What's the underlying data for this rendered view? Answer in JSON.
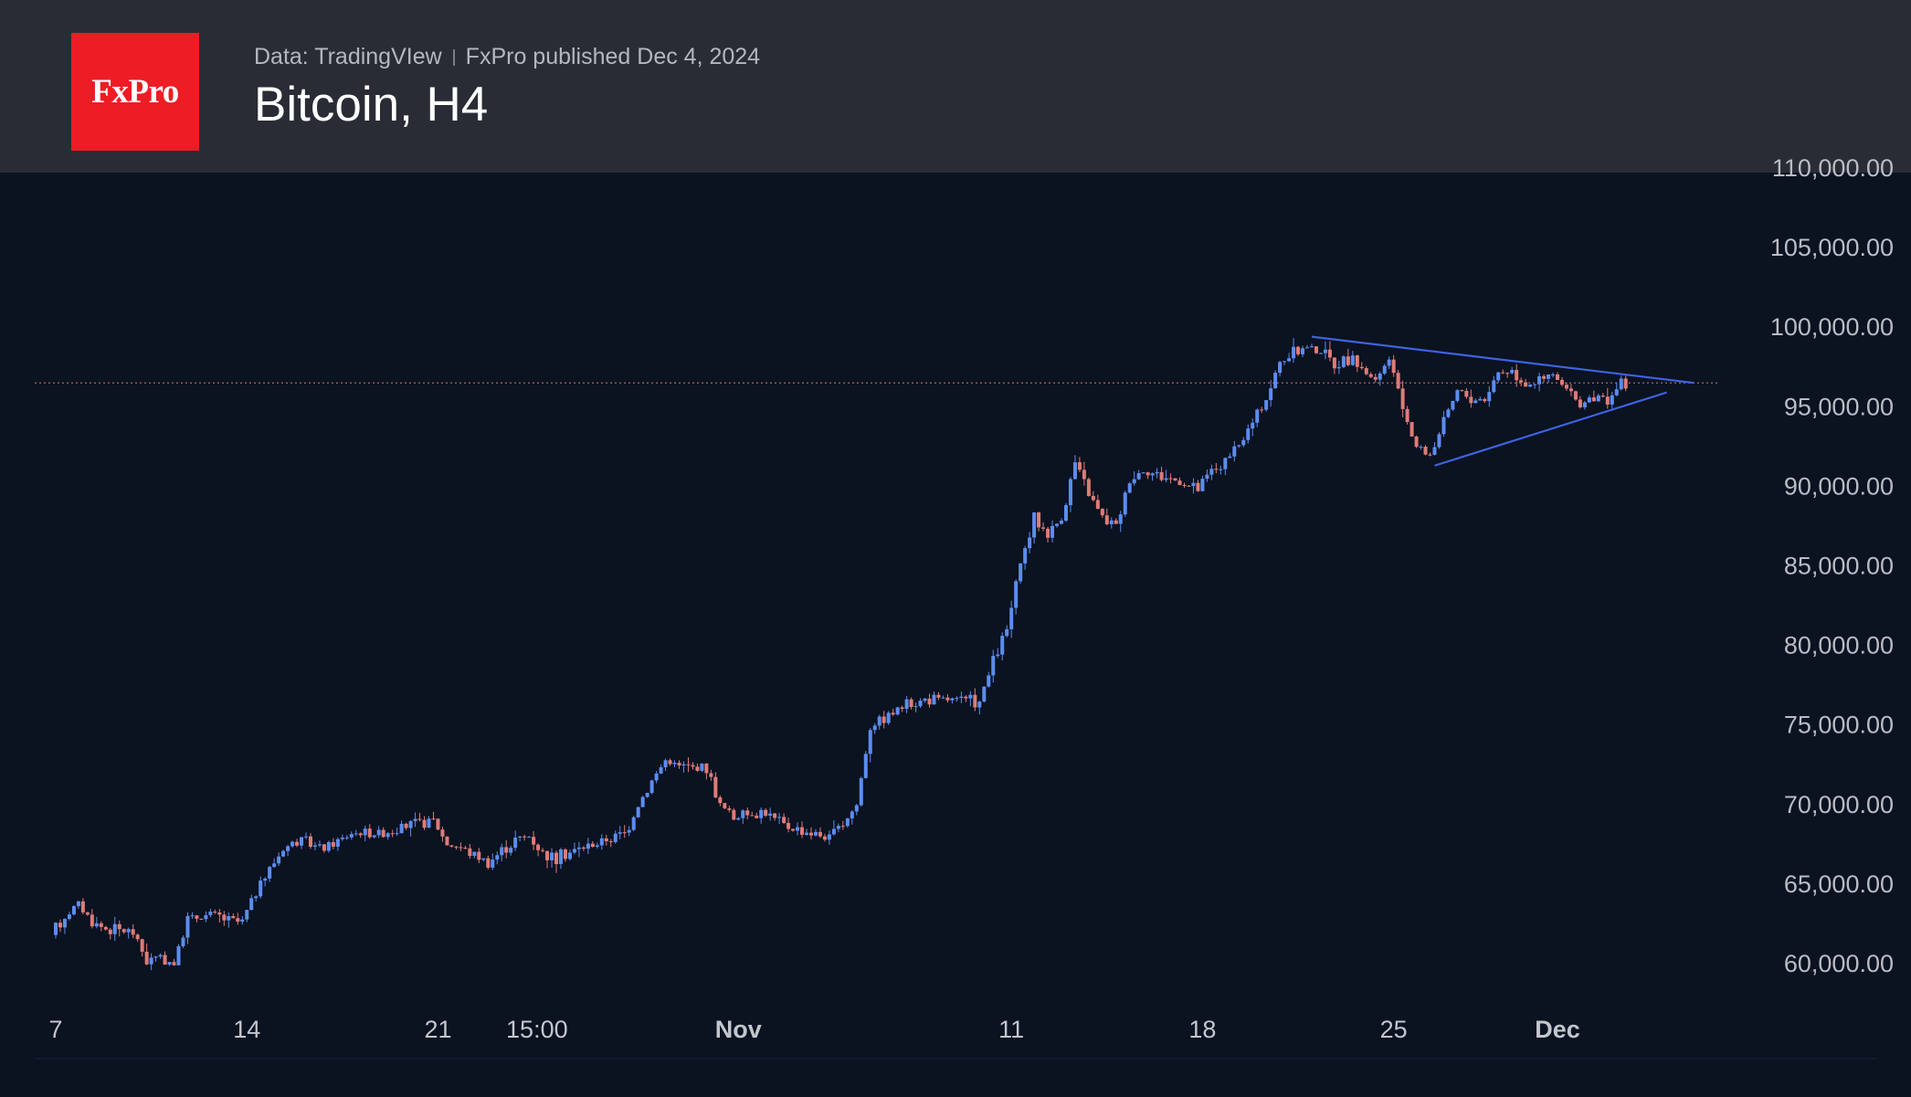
{
  "header": {
    "logo_text": "FxPro",
    "source": "Data: TradingVIew",
    "published": "FxPro published Dec 4, 2024",
    "title": "Bitcoin, H4"
  },
  "colors": {
    "background": "#0b1220",
    "header": "#2a2c35",
    "logo": "#ee1c24",
    "up": "#5b8def",
    "down": "#e07b76",
    "trendline": "#3d63e0",
    "price_line": "#b4727a"
  },
  "chart_data": {
    "type": "candlestick",
    "title": "Bitcoin, H4",
    "ylim": [
      57500,
      110000
    ],
    "y_ticks": [
      60000,
      65000,
      70000,
      75000,
      80000,
      85000,
      90000,
      95000,
      100000,
      105000,
      110000
    ],
    "y_tick_labels": [
      "60,000.00",
      "65,000.00",
      "70,000.00",
      "75,000.00",
      "80,000.00",
      "85,000.00",
      "90,000.00",
      "95,000.00",
      "100,000.00",
      "105,000.00",
      "110,000.00"
    ],
    "x_ticks": [
      {
        "label": "7",
        "date": "2024-10-07",
        "bold": false
      },
      {
        "label": "14",
        "date": "2024-10-14",
        "bold": false
      },
      {
        "label": "21",
        "date": "2024-10-21",
        "bold": false
      },
      {
        "label": "15:00",
        "date": "2024-10-24 15:00",
        "bold": false
      },
      {
        "label": "Nov",
        "date": "2024-11-01",
        "bold": true
      },
      {
        "label": "11",
        "date": "2024-11-11",
        "bold": false
      },
      {
        "label": "18",
        "date": "2024-11-18",
        "bold": false
      },
      {
        "label": "25",
        "date": "2024-11-25",
        "bold": false
      },
      {
        "label": "Dec",
        "date": "2024-12-01",
        "bold": true
      }
    ],
    "price_path": [
      [
        "2024-10-07",
        61800
      ],
      [
        "2024-10-07 12:00",
        63000
      ],
      [
        "2024-10-08",
        63800
      ],
      [
        "2024-10-08 12:00",
        62600
      ],
      [
        "2024-10-09",
        62200
      ],
      [
        "2024-10-10",
        62000
      ],
      [
        "2024-10-10 12:00",
        60200
      ],
      [
        "2024-10-11",
        60400
      ],
      [
        "2024-10-11 12:00",
        60000
      ],
      [
        "2024-10-12",
        62800
      ],
      [
        "2024-10-13",
        63100
      ],
      [
        "2024-10-13 12:00",
        62700
      ],
      [
        "2024-10-14",
        62600
      ],
      [
        "2024-10-14 12:00",
        64500
      ],
      [
        "2024-10-15",
        66000
      ],
      [
        "2024-10-15 12:00",
        67200
      ],
      [
        "2024-10-16",
        67800
      ],
      [
        "2024-10-17",
        67200
      ],
      [
        "2024-10-18",
        68200
      ],
      [
        "2024-10-19",
        68200
      ],
      [
        "2024-10-20",
        68600
      ],
      [
        "2024-10-21",
        69000
      ],
      [
        "2024-10-21 12:00",
        67500
      ],
      [
        "2024-10-22",
        67300
      ],
      [
        "2024-10-23",
        66400
      ],
      [
        "2024-10-24",
        67800
      ],
      [
        "2024-10-24 12:00",
        68000
      ],
      [
        "2024-10-25",
        67000
      ],
      [
        "2024-10-25 12:00",
        66600
      ],
      [
        "2024-10-26",
        67000
      ],
      [
        "2024-10-27",
        67600
      ],
      [
        "2024-10-28",
        68200
      ],
      [
        "2024-10-28 12:00",
        70000
      ],
      [
        "2024-10-29",
        71500
      ],
      [
        "2024-10-29 12:00",
        72800
      ],
      [
        "2024-10-30",
        72400
      ],
      [
        "2024-10-31",
        72300
      ],
      [
        "2024-10-31 12:00",
        70000
      ],
      [
        "2024-11-01",
        69200
      ],
      [
        "2024-11-02",
        69600
      ],
      [
        "2024-11-03",
        68600
      ],
      [
        "2024-11-04",
        68200
      ],
      [
        "2024-11-04 12:00",
        67900
      ],
      [
        "2024-11-05",
        68800
      ],
      [
        "2024-11-05 12:00",
        70000
      ],
      [
        "2024-11-06",
        75000
      ],
      [
        "2024-11-06 12:00",
        75500
      ],
      [
        "2024-11-07",
        76000
      ],
      [
        "2024-11-08",
        76600
      ],
      [
        "2024-11-09",
        76600
      ],
      [
        "2024-11-10",
        76400
      ],
      [
        "2024-11-10 12:00",
        79000
      ],
      [
        "2024-11-11",
        81000
      ],
      [
        "2024-11-11 12:00",
        85000
      ],
      [
        "2024-11-12",
        88000
      ],
      [
        "2024-11-12 12:00",
        87000
      ],
      [
        "2024-11-13",
        88000
      ],
      [
        "2024-11-13 12:00",
        91500
      ],
      [
        "2024-11-14",
        89500
      ],
      [
        "2024-11-14 12:00",
        88000
      ],
      [
        "2024-11-15",
        87500
      ],
      [
        "2024-11-15 12:00",
        90500
      ],
      [
        "2024-11-16",
        91000
      ],
      [
        "2024-11-17",
        90500
      ],
      [
        "2024-11-18",
        89800
      ],
      [
        "2024-11-18 12:00",
        91000
      ],
      [
        "2024-11-19",
        91500
      ],
      [
        "2024-11-19 12:00",
        92500
      ],
      [
        "2024-11-20",
        94000
      ],
      [
        "2024-11-20 12:00",
        95500
      ],
      [
        "2024-11-21",
        97800
      ],
      [
        "2024-11-21 12:00",
        98300
      ],
      [
        "2024-11-22",
        98800
      ],
      [
        "2024-11-22 12:00",
        98500
      ],
      [
        "2024-11-23",
        97700
      ],
      [
        "2024-11-23 12:00",
        98000
      ],
      [
        "2024-11-24",
        97500
      ],
      [
        "2024-11-24 12:00",
        96500
      ],
      [
        "2024-11-25",
        98000
      ],
      [
        "2024-11-25 12:00",
        95000
      ],
      [
        "2024-11-26",
        92500
      ],
      [
        "2024-11-26 12:00",
        92000
      ],
      [
        "2024-11-27",
        94000
      ],
      [
        "2024-11-27 12:00",
        96000
      ],
      [
        "2024-11-28",
        95500
      ],
      [
        "2024-11-28 12:00",
        95500
      ],
      [
        "2024-11-29",
        97200
      ],
      [
        "2024-11-29 12:00",
        97300
      ],
      [
        "2024-11-30",
        96500
      ],
      [
        "2024-11-30 12:00",
        96600
      ],
      [
        "2024-12-01",
        97000
      ],
      [
        "2024-12-01 12:00",
        96000
      ],
      [
        "2024-12-02",
        95200
      ],
      [
        "2024-12-02 12:00",
        95500
      ],
      [
        "2024-12-03",
        95600
      ],
      [
        "2024-12-03 12:00",
        96400
      ]
    ],
    "last_price": 96500,
    "trendlines": [
      {
        "from": [
          "2024-11-22",
          99400
        ],
        "to": [
          "2024-12-06",
          96500
        ]
      },
      {
        "from": [
          "2024-11-26 12:00",
          91300
        ],
        "to": [
          "2024-12-05",
          95900
        ]
      }
    ]
  }
}
